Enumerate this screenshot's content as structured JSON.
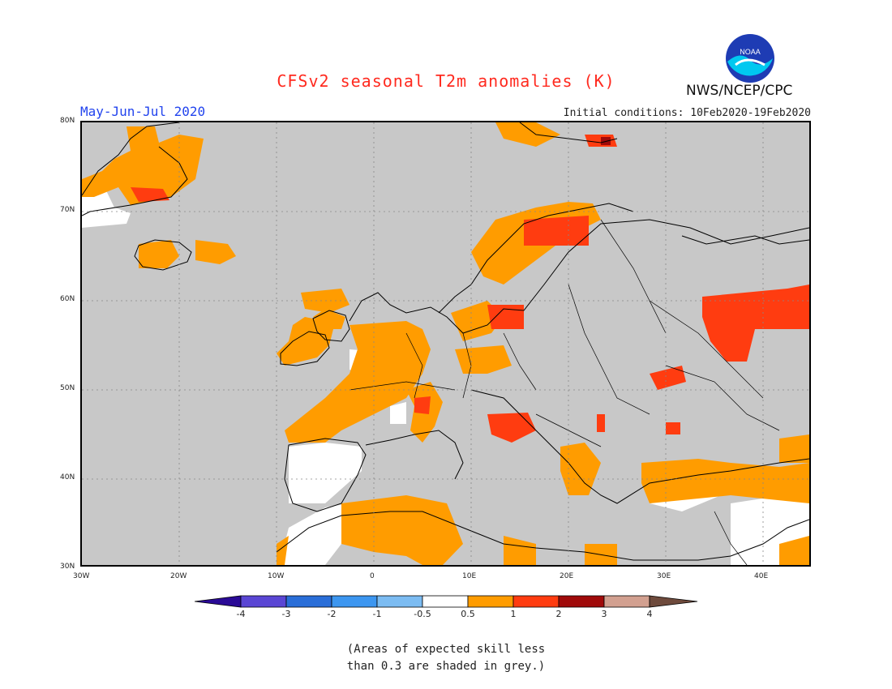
{
  "title": "CFSv2 seasonal T2m anomalies (K)",
  "period": "May-Jun-Jul 2020",
  "initial_conditions": "Initial conditions: 10Feb2020-19Feb2020",
  "agency": "NWS/NCEP/CPC",
  "logo_text": "NOAA",
  "footnote_line1": "(Areas of expected skill less",
  "footnote_line2": "than 0.3 are shaded in grey.)",
  "map": {
    "lon_ticks": [
      "30W",
      "20W",
      "10W",
      "0",
      "10E",
      "20E",
      "30E",
      "40E"
    ],
    "lat_ticks": [
      "80N",
      "70N",
      "60N",
      "50N",
      "40N",
      "30N"
    ]
  },
  "colorbar": {
    "labels": [
      "-4",
      "-3",
      "-2",
      "-1",
      "-0.5",
      "0.5",
      "1",
      "2",
      "3",
      "4"
    ],
    "colors": [
      "#2a0a96",
      "#5a46d4",
      "#2a6ed8",
      "#3c96f0",
      "#7cbcf2",
      "#ffffff",
      "#ff9c00",
      "#ff3c10",
      "#a00a0a",
      "#d2a090",
      "#6e4a3c"
    ]
  },
  "anomaly_colors": {
    "grey": "#c8c8c8",
    "white": "#ffffff",
    "orange": "#ff9c00",
    "red": "#ff3c10",
    "darkred": "#a00a0a"
  }
}
